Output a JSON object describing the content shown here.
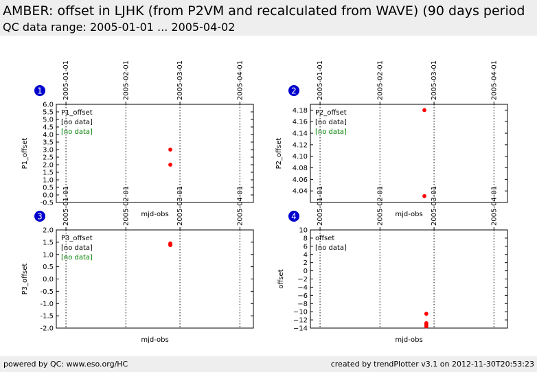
{
  "header": {
    "title": "AMBER: offset in LJHK (from P2VM and recalculated from WAVE) (90 days period",
    "subtitle": "QC data range: 2005-01-01 ... 2005-04-02"
  },
  "footer": {
    "left": "powered by QC: www.eso.org/HC",
    "right": "created by trendPlotter v3.1 on 2012-11-30T20:53:23"
  },
  "colors": {
    "data": "#ff0000",
    "badge": "#0000cc",
    "nodata_green": "#008000",
    "panel_bg": "#eeeeee"
  },
  "chart_data": [
    {
      "type": "scatter",
      "panel": "1",
      "date_ticks": [
        "2005-01-01",
        "2005-02-01",
        "2005-03-01",
        "2005-04-01"
      ],
      "xlabel": "mjd-obs",
      "ylabel": "P1_offset",
      "ylim": [
        -0.5,
        6.0
      ],
      "yticks": [
        "6.0",
        "5.5",
        "5.0",
        "4.5",
        "4.0",
        "3.5",
        "3.0",
        "2.5",
        "2.0",
        "1.5",
        "1.0",
        "0.5",
        "0.0",
        "-0.5"
      ],
      "legend": [
        "P1_offset",
        "[no data]",
        "[no data]"
      ],
      "series": [
        {
          "x": [
            "2005-02-24",
            "2005-02-24"
          ],
          "y": [
            3.0,
            2.0
          ]
        }
      ]
    },
    {
      "type": "scatter",
      "panel": "2",
      "date_ticks": [
        "2005-01-01",
        "2005-02-01",
        "2005-03-01",
        "2005-04-01"
      ],
      "xlabel": "mjd-obs",
      "ylabel": "P2_offset",
      "ylim": [
        4.02,
        4.19
      ],
      "yticks": [
        "4.18",
        "4.16",
        "4.14",
        "4.12",
        "4.10",
        "4.08",
        "4.06",
        "4.04"
      ],
      "legend": [
        "P2_offset",
        "[no data]",
        "[no data]"
      ],
      "series": [
        {
          "x": [
            "2005-02-24",
            "2005-02-24"
          ],
          "y": [
            4.18,
            4.031
          ]
        }
      ]
    },
    {
      "type": "scatter",
      "panel": "3",
      "date_ticks": [
        "2005-01-01",
        "2005-02-01",
        "2005-03-01",
        "2005-04-01"
      ],
      "xlabel": "mjd-obs",
      "ylabel": "P3_offset",
      "ylim": [
        -2.0,
        2.0
      ],
      "yticks": [
        "2.0",
        "1.5",
        "1.0",
        "0.5",
        "0.0",
        "-0.5",
        "-1.0",
        "-1.5",
        "-2.0"
      ],
      "legend": [
        "P3_offset",
        "[no data]",
        "[no data]"
      ],
      "series": [
        {
          "x": [
            "2005-02-24",
            "2005-02-24",
            "2005-02-24"
          ],
          "y": [
            1.45,
            1.4,
            1.38
          ]
        }
      ]
    },
    {
      "type": "scatter",
      "panel": "4",
      "date_ticks": [
        "2005-01-01",
        "2005-02-01",
        "2005-03-01",
        "2005-04-01"
      ],
      "xlabel": "mjd-obs",
      "ylabel": "offset",
      "ylim": [
        -14,
        10
      ],
      "yticks": [
        "10",
        "8",
        "6",
        "4",
        "2",
        "0",
        "−2",
        "−4",
        "−6",
        "−8",
        "−10",
        "−12",
        "−14"
      ],
      "legend": [
        "offset",
        "[no data]"
      ],
      "series": [
        {
          "x": [
            "2005-02-25",
            "2005-02-25",
            "2005-02-25",
            "2005-02-25"
          ],
          "y": [
            -10.5,
            -12.8,
            -13.2,
            -13.6
          ]
        }
      ]
    }
  ]
}
